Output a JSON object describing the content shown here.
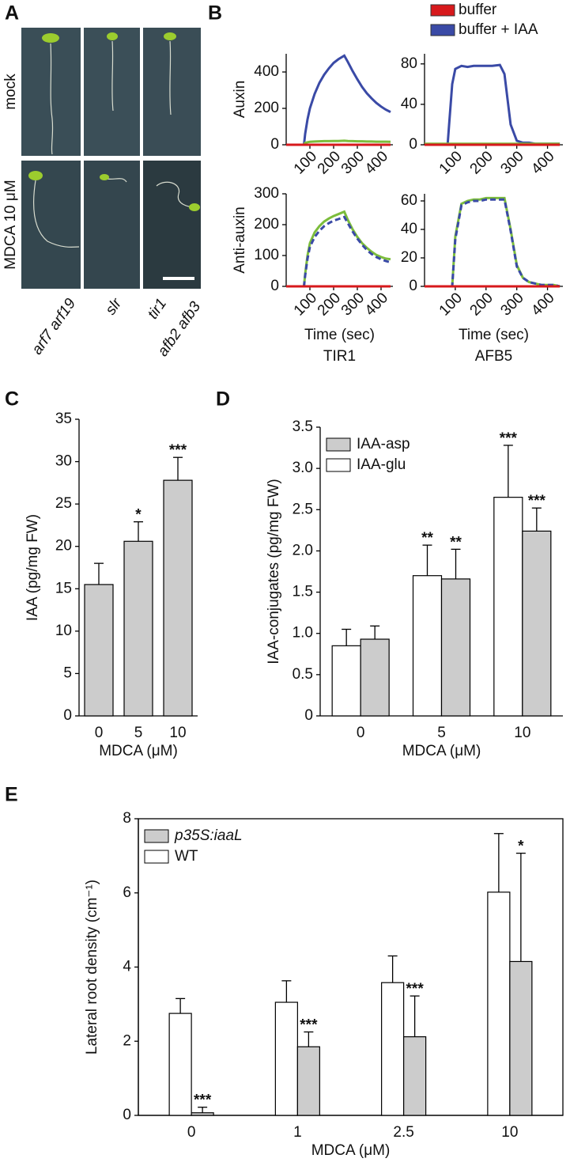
{
  "letters": [
    "A",
    "B",
    "C",
    "D",
    "E"
  ],
  "photos": {
    "row_labels": [
      "mock",
      "MDCA 10 μM"
    ],
    "column_labels": [
      [
        "arf7 arf19"
      ],
      [
        "slr"
      ],
      [
        "tir1",
        "afb2 afb3"
      ]
    ]
  },
  "legend_b": [
    {
      "name": "buffer",
      "color": "#d7191c"
    },
    {
      "name": "buffer + IAA",
      "color": "#3a4aa6"
    }
  ],
  "chart_data": [
    {
      "type": "line",
      "ylabel": "Auxin",
      "x": [
        0,
        20,
        40,
        60,
        75,
        80,
        90,
        100,
        120,
        140,
        160,
        180,
        200,
        220,
        245,
        260,
        280,
        300,
        320,
        340,
        360,
        380,
        400,
        420,
        440
      ],
      "series": [
        {
          "color": "#3a4aa6",
          "values": [
            0,
            0,
            0,
            0,
            0,
            60,
            140,
            200,
            280,
            340,
            385,
            420,
            450,
            470,
            490,
            455,
            405,
            360,
            318,
            283,
            255,
            230,
            210,
            193,
            180
          ]
        },
        {
          "color": "#7cbd3c",
          "values": [
            0,
            0,
            0,
            0,
            0,
            10,
            14,
            16,
            18,
            19,
            20,
            20,
            21,
            21,
            22,
            21,
            20,
            19,
            19,
            18,
            18,
            17,
            17,
            17,
            16
          ]
        },
        {
          "color": "#d7191c",
          "values": [
            0,
            0,
            0,
            0,
            0,
            0,
            0,
            0,
            0,
            0,
            0,
            0,
            0,
            0,
            0,
            0,
            0,
            0,
            0,
            0,
            0,
            0,
            0,
            0,
            0
          ]
        }
      ],
      "xlim": [
        0,
        450
      ],
      "xticks": [
        100,
        200,
        300,
        400
      ],
      "ylim": [
        0,
        500
      ],
      "yticks": [
        0,
        200,
        400
      ]
    },
    {
      "type": "line",
      "x": [
        0,
        20,
        40,
        60,
        75,
        80,
        90,
        100,
        120,
        140,
        160,
        180,
        200,
        220,
        245,
        260,
        280,
        300,
        320,
        340,
        360,
        380,
        400,
        420,
        440
      ],
      "series": [
        {
          "color": "#3a4aa6",
          "values": [
            0,
            0,
            0,
            0,
            0,
            20,
            60,
            75,
            78,
            77,
            78,
            78,
            78,
            78,
            79,
            70,
            20,
            4,
            2,
            2,
            1,
            1,
            1,
            1,
            1
          ]
        },
        {
          "color": "#7cbd3c",
          "values": [
            1,
            1,
            1,
            1,
            1,
            1,
            1,
            1,
            1,
            1,
            1,
            1,
            1,
            1,
            1,
            1,
            1,
            1,
            1,
            1,
            1,
            1,
            1,
            1,
            1
          ]
        },
        {
          "color": "#d7191c",
          "values": [
            0,
            0,
            0,
            0,
            0,
            0,
            0,
            0,
            0,
            0,
            0,
            0,
            0,
            0,
            0,
            0,
            0,
            0,
            0,
            0,
            0,
            0,
            0,
            0,
            0
          ]
        }
      ],
      "xlim": [
        0,
        450
      ],
      "xticks": [
        100,
        200,
        300,
        400
      ],
      "ylim": [
        0,
        90
      ],
      "yticks": [
        0,
        40,
        80
      ]
    },
    {
      "type": "line",
      "ylabel": "Anti-auxin",
      "xlabel": "Time (sec)",
      "subtitle": "TIR1",
      "x": [
        0,
        20,
        40,
        60,
        75,
        80,
        90,
        100,
        120,
        140,
        160,
        180,
        200,
        220,
        245,
        260,
        280,
        300,
        320,
        340,
        360,
        380,
        400,
        420,
        440
      ],
      "series": [
        {
          "color": "#7cbd3c",
          "values": [
            0,
            0,
            0,
            0,
            0,
            40,
            100,
            140,
            175,
            195,
            210,
            220,
            228,
            234,
            242,
            215,
            185,
            160,
            140,
            125,
            112,
            102,
            95,
            90,
            88
          ]
        },
        {
          "color": "#3a4aa6",
          "dash": true,
          "values": [
            0,
            0,
            0,
            0,
            0,
            35,
            90,
            128,
            160,
            180,
            195,
            205,
            213,
            218,
            225,
            205,
            178,
            155,
            135,
            118,
            105,
            95,
            88,
            82,
            78
          ]
        },
        {
          "color": "#d7191c",
          "values": [
            0,
            0,
            0,
            0,
            0,
            0,
            0,
            0,
            0,
            0,
            0,
            0,
            0,
            0,
            0,
            0,
            0,
            0,
            0,
            0,
            0,
            0,
            0,
            0,
            0
          ]
        }
      ],
      "xlim": [
        0,
        450
      ],
      "xticks": [
        100,
        200,
        300,
        400
      ],
      "ylim": [
        0,
        300
      ],
      "yticks": [
        0,
        100,
        200,
        300
      ]
    },
    {
      "type": "line",
      "xlabel": "Time (sec)",
      "subtitle": "AFB5",
      "x": [
        0,
        20,
        40,
        60,
        75,
        80,
        90,
        100,
        120,
        140,
        160,
        180,
        200,
        220,
        245,
        260,
        280,
        300,
        320,
        340,
        360,
        380,
        400,
        420,
        440
      ],
      "series": [
        {
          "color": "#7cbd3c",
          "values": [
            0,
            0,
            0,
            0,
            0,
            0,
            0,
            35,
            58,
            60,
            61,
            61,
            62,
            62,
            62,
            62,
            40,
            15,
            6,
            3,
            2,
            1,
            1,
            1,
            0
          ]
        },
        {
          "color": "#3a4aa6",
          "dash": true,
          "values": [
            0,
            0,
            0,
            0,
            0,
            0,
            0,
            33,
            57,
            59,
            60,
            60,
            61,
            61,
            61,
            61,
            39,
            14,
            6,
            3,
            2,
            1,
            1,
            1,
            0
          ]
        },
        {
          "color": "#d7191c",
          "values": [
            0,
            0,
            0,
            0,
            0,
            0,
            0,
            0,
            0,
            0,
            0,
            0,
            0,
            0,
            0,
            0,
            0,
            0,
            0,
            0,
            0,
            0,
            0,
            0,
            0
          ]
        }
      ],
      "xlim": [
        0,
        450
      ],
      "xticks": [
        100,
        200,
        300,
        400
      ],
      "ylim": [
        0,
        65
      ],
      "yticks": [
        0,
        20,
        40,
        60
      ]
    },
    {
      "type": "bar",
      "ylabel": "IAA (pg/mg FW)",
      "xlabel": "MDCA (μM)",
      "categories": [
        "0",
        "5",
        "10"
      ],
      "series": [
        {
          "color": "#cccccc",
          "values": [
            15.5,
            20.6,
            27.8
          ],
          "errors": [
            2.5,
            2.3,
            2.7
          ],
          "annotations": [
            null,
            "*",
            "***"
          ]
        }
      ],
      "ylim": [
        0,
        35
      ],
      "yticks": [
        0,
        5,
        10,
        15,
        20,
        25,
        30,
        35
      ]
    },
    {
      "type": "bar",
      "ylabel": "IAA-conjugates (pg/mg FW)",
      "xlabel": "MDCA (μM)",
      "categories": [
        "0",
        "5",
        "10"
      ],
      "series": [
        {
          "name": "IAA-glu",
          "color": "#ffffff",
          "values": [
            0.85,
            1.7,
            2.65
          ],
          "errors": [
            0.2,
            0.37,
            0.63
          ],
          "annotations": [
            null,
            "**",
            "***"
          ]
        },
        {
          "name": "IAA-asp",
          "color": "#cccccc",
          "values": [
            0.93,
            1.66,
            2.24
          ],
          "errors": [
            0.16,
            0.36,
            0.28
          ],
          "annotations": [
            null,
            "**",
            "***"
          ]
        }
      ],
      "ylim": [
        0,
        3.5
      ],
      "yticks": [
        0,
        0.5,
        {
          "value": 1,
          "label": "1.0"
        },
        1.5,
        {
          "value": 2,
          "label": "2.0"
        },
        2.5,
        {
          "value": 3,
          "label": "3.0"
        },
        3.5
      ]
    },
    {
      "type": "bar",
      "ylabel": "Lateral root density (cm⁻¹)",
      "xlabel": "MDCA (μM)",
      "categories": [
        "0",
        "1",
        "2.5",
        "10"
      ],
      "box": true,
      "series": [
        {
          "name": "WT",
          "color": "#ffffff",
          "values": [
            2.75,
            3.05,
            3.58,
            6.02
          ],
          "errors": [
            0.4,
            0.58,
            0.72,
            1.58
          ],
          "annotations": [
            null,
            null,
            null,
            null
          ]
        },
        {
          "name": "p35S:iaaL",
          "italic": true,
          "color": "#cccccc",
          "values": [
            0.07,
            1.85,
            2.12,
            4.15
          ],
          "errors": [
            0.15,
            0.4,
            1.1,
            2.92
          ],
          "annotations": [
            "***",
            "***",
            "***",
            "*"
          ]
        }
      ],
      "ylim": [
        0,
        8
      ],
      "yticks": [
        0,
        2,
        4,
        6,
        8
      ]
    }
  ]
}
